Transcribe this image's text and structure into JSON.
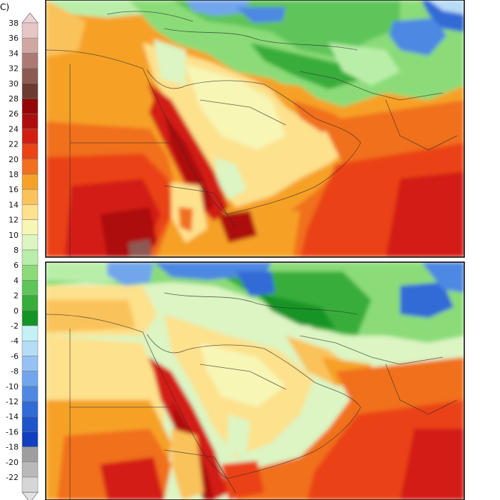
{
  "legend": {
    "unit_fragment": "C)",
    "entries": [
      {
        "label": "38",
        "color": "#e8c6c6"
      },
      {
        "label": "36",
        "color": "#d1a7a4"
      },
      {
        "label": "34",
        "color": "#ac7a74"
      },
      {
        "label": "32",
        "color": "#8d5a52"
      },
      {
        "label": "30",
        "color": "#6b3b33"
      },
      {
        "label": "28",
        "color": "#930707"
      },
      {
        "label": "26",
        "color": "#ad0f0f"
      },
      {
        "label": "24",
        "color": "#d31f12"
      },
      {
        "label": "22",
        "color": "#ea4315"
      },
      {
        "label": "20",
        "color": "#f16f1f"
      },
      {
        "label": "18",
        "color": "#f6a128"
      },
      {
        "label": "16",
        "color": "#fac25a"
      },
      {
        "label": "14",
        "color": "#fde18c"
      },
      {
        "label": "12",
        "color": "#f7f6b5"
      },
      {
        "label": "10",
        "color": "#dcf5c3"
      },
      {
        "label": "8",
        "color": "#b9eea9"
      },
      {
        "label": "6",
        "color": "#8bdc78"
      },
      {
        "label": "4",
        "color": "#5ec55a"
      },
      {
        "label": "2",
        "color": "#37ad3a"
      },
      {
        "label": "0",
        "color": "#149426"
      },
      {
        "label": "-2",
        "color": "#c4f1f6"
      },
      {
        "label": "-4",
        "color": "#b7dcf6"
      },
      {
        "label": "-6",
        "color": "#95c2f2"
      },
      {
        "label": "-8",
        "color": "#72a6ec"
      },
      {
        "label": "-10",
        "color": "#4e88e2"
      },
      {
        "label": "-12",
        "color": "#306bd6"
      },
      {
        "label": "-14",
        "color": "#1d55cc"
      },
      {
        "label": "-16",
        "color": "#103fbf"
      },
      {
        "label": "-18",
        "color": "#9e9e9e"
      },
      {
        "label": "-20",
        "color": "#b9b9b9"
      },
      {
        "label": "-22",
        "color": "#d6d6d6"
      }
    ]
  }
}
